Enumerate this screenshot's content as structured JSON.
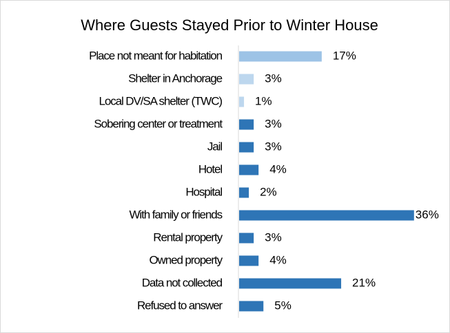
{
  "chart_data": {
    "type": "hbar",
    "title": "Where Guests Stayed Prior to Winter House",
    "categories": [
      "Place not meant for habitation",
      "Shelter in Anchorage",
      "Local DV/SA shelter (TWC)",
      "Sobering center or treatment",
      "Jail",
      "Hotel",
      "Hospital",
      "With family or friends",
      "Rental property",
      "Owned property",
      "Data not collected",
      "Refused to answer"
    ],
    "values": [
      17,
      3,
      1,
      3,
      3,
      4,
      2,
      36,
      3,
      4,
      21,
      5
    ],
    "value_labels": [
      "17%",
      "3%",
      "1%",
      "3%",
      "3%",
      "4%",
      "2%",
      "36%",
      "3%",
      "4%",
      "21%",
      "5%"
    ],
    "colors": [
      "#9dc3e6",
      "#bdd7ee",
      "#bdd7ee",
      "#2e75b6",
      "#2e75b6",
      "#2e75b6",
      "#2e75b6",
      "#2e75b6",
      "#2e75b6",
      "#2e75b6",
      "#2e75b6",
      "#2e75b6"
    ]
  }
}
